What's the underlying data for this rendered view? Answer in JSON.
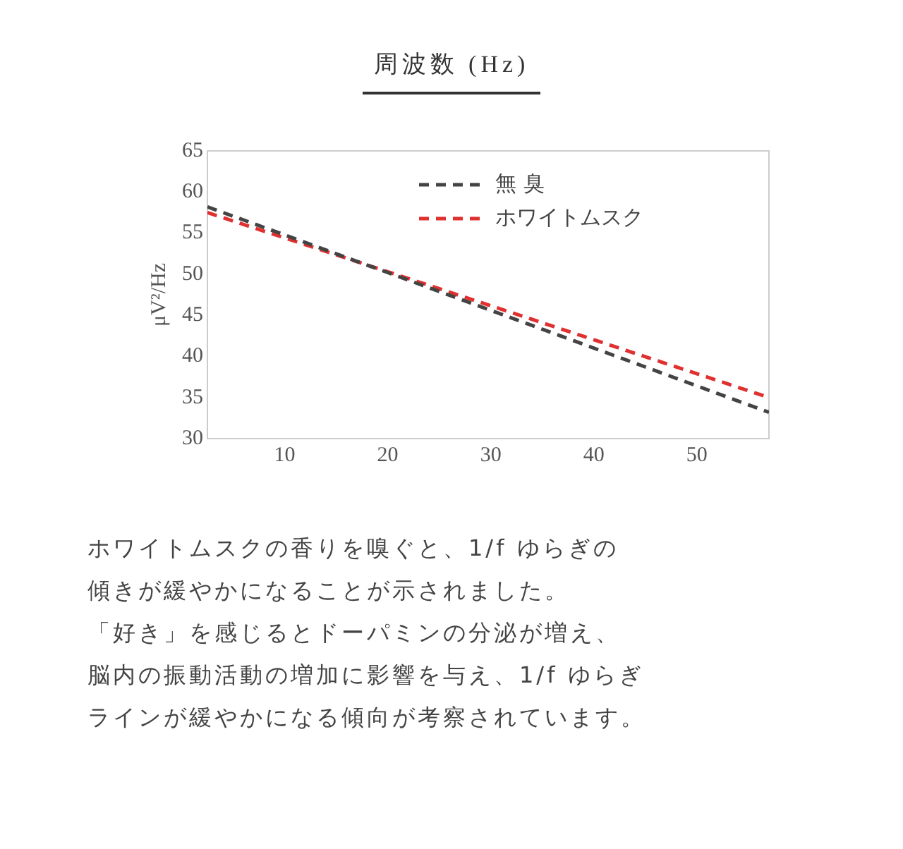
{
  "chart_data": {
    "type": "line",
    "title": "周波数 (Hz)",
    "ylabel": "μV²/Hz",
    "xlim": [
      2.5,
      57
    ],
    "xticks": [
      10,
      20,
      30,
      40,
      50
    ],
    "ylim": [
      30,
      65
    ],
    "yticks": [
      30,
      35,
      40,
      45,
      50,
      55,
      60,
      65
    ],
    "grid": false,
    "legend": "top right",
    "marker": "none",
    "line_style": "dashed",
    "series": [
      {
        "name": "無 臭",
        "color": "#444444",
        "x": [
          2.5,
          20,
          57
        ],
        "values": [
          58.2,
          50.2,
          33.2
        ]
      },
      {
        "name": "ホワイトムスク",
        "color": "#e03030",
        "x": [
          2.5,
          20,
          57
        ],
        "values": [
          57.5,
          50.3,
          35.0
        ]
      }
    ],
    "annotations": [
      "ホワイトムスクの香りを嗅ぐと、1/f ゆらぎの",
      "傾きが緩やかになることが示されました。",
      "「好き」を感じるとドーパミンの分泌が増え、",
      "脳内の振動活動の増加に影響を与え、1/f ゆらぎ",
      "ラインが緩やかになる傾向が考察されています。"
    ]
  }
}
